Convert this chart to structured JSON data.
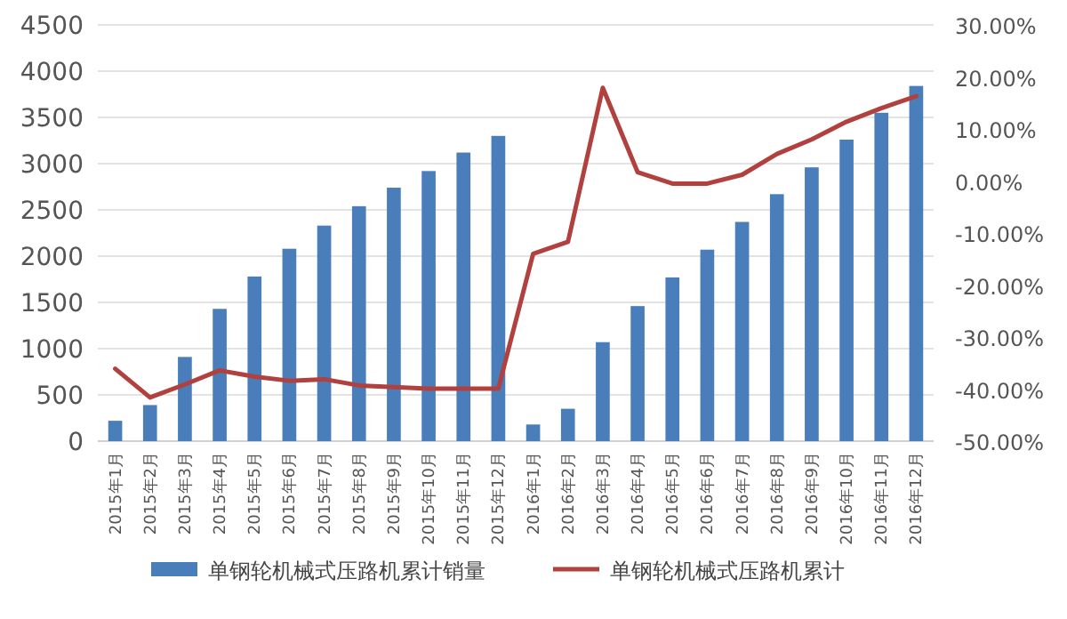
{
  "chart_data": {
    "type": "bar",
    "categories": [
      "2015年1月",
      "2015年2月",
      "2015年3月",
      "2015年4月",
      "2015年5月",
      "2015年6月",
      "2015年7月",
      "2015年8月",
      "2015年9月",
      "2015年10月",
      "2015年11月",
      "2015年12月",
      "2016年1月",
      "2016年2月",
      "2016年3月",
      "2016年4月",
      "2016年5月",
      "2016年6月",
      "2016年7月",
      "2016年8月",
      "2016年9月",
      "2016年10月",
      "2016年11月",
      "2016年12月"
    ],
    "series": [
      {
        "name": "单钢轮机械式压路机累计销量",
        "color": "#4a7ebb",
        "values": [
          220,
          390,
          910,
          1430,
          1780,
          2080,
          2330,
          2540,
          2740,
          2920,
          3120,
          3300,
          180,
          350,
          1070,
          1460,
          1770,
          2070,
          2370,
          2670,
          2960,
          3260,
          3550,
          3840
        ]
      },
      {
        "name": "单钢轮机械式压路机累计",
        "type": "line",
        "axis": "y2",
        "color": "#b0413e",
        "values": [
          -36.1,
          -41.6,
          -39.1,
          -36.4,
          -37.6,
          -38.4,
          -38.1,
          -39.3,
          -39.6,
          -39.9,
          -39.9,
          -39.9,
          -14.0,
          -11.7,
          17.9,
          1.7,
          -0.5,
          -0.5,
          1.2,
          5.2,
          8.0,
          11.4,
          14.0,
          16.3
        ]
      }
    ],
    "ylim": [
      0,
      4500
    ],
    "yticks": [
      0,
      500,
      1000,
      1500,
      2000,
      2500,
      3000,
      3500,
      4000,
      4500
    ],
    "y2lim": [
      -50,
      30
    ],
    "y2ticks": [
      {
        "value": -50,
        "label": "-50.00%"
      },
      {
        "value": -40,
        "label": "-40.00%"
      },
      {
        "value": -30,
        "label": "-30.00%"
      },
      {
        "value": -20,
        "label": "-20.00%"
      },
      {
        "value": -10,
        "label": "-10.00%"
      },
      {
        "value": 0,
        "label": "0.00%"
      },
      {
        "value": 10,
        "label": "10.00%"
      },
      {
        "value": 20,
        "label": "20.00%"
      },
      {
        "value": 30,
        "label": "30.00%"
      }
    ],
    "grid": "y",
    "legend": "bottom"
  }
}
